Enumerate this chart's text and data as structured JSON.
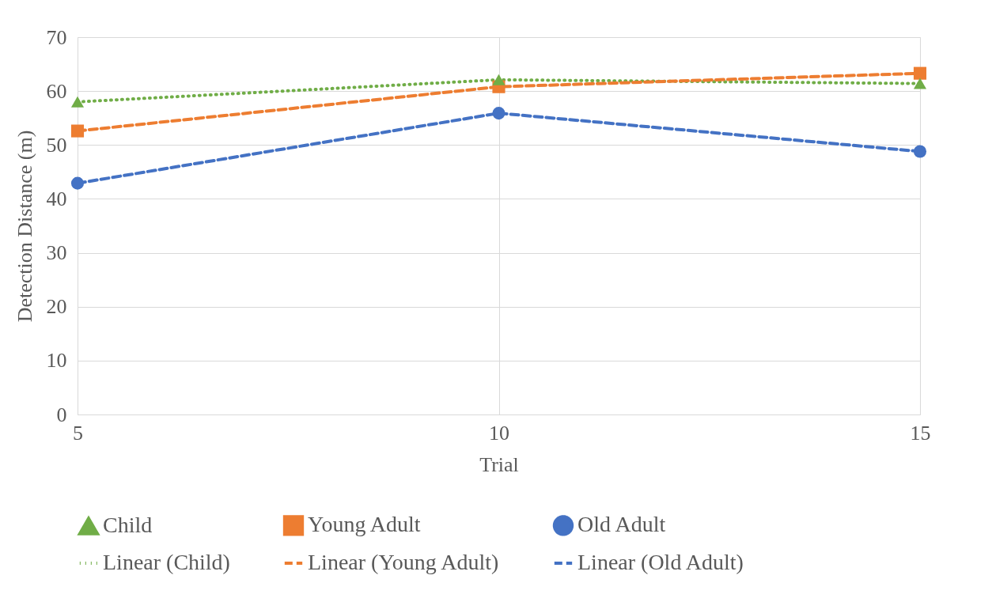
{
  "chart_data": {
    "type": "scatter",
    "xlabel": "Trial",
    "ylabel": "Detection Distance (m)",
    "xlim": [
      5,
      15
    ],
    "xticks": [
      5,
      10,
      15
    ],
    "ylim": [
      0,
      70
    ],
    "yticks": [
      0,
      10,
      20,
      30,
      40,
      50,
      60,
      70
    ],
    "grid": true,
    "legend": "bottom",
    "series": [
      {
        "name": "Child",
        "marker": "triangle",
        "color": "#70ad47",
        "x": [
          5,
          10,
          15
        ],
        "values": [
          58.0,
          62.1,
          61.4
        ]
      },
      {
        "name": "Young Adult",
        "marker": "square",
        "color": "#ed7d31",
        "x": [
          5,
          10,
          15
        ],
        "values": [
          52.6,
          60.8,
          63.3
        ]
      },
      {
        "name": "Old Adult",
        "marker": "circle",
        "color": "#4472c4",
        "x": [
          5,
          10,
          15
        ],
        "values": [
          42.9,
          55.9,
          48.8
        ]
      },
      {
        "name": "Linear (Child)",
        "type": "line",
        "marker": "none",
        "line_style": "dotted",
        "color": "#70ad47",
        "x": [
          5,
          10,
          15
        ],
        "values": [
          58.0,
          62.1,
          61.4
        ]
      },
      {
        "name": "Linear (Young Adult)",
        "type": "line",
        "marker": "none",
        "line_style": "dashed",
        "color": "#ed7d31",
        "x": [
          5,
          10,
          15
        ],
        "values": [
          52.6,
          60.8,
          63.3
        ]
      },
      {
        "name": "Linear (Old Adult)",
        "type": "line",
        "marker": "none",
        "line_style": "dashed",
        "color": "#4472c4",
        "x": [
          5,
          10,
          15
        ],
        "values": [
          42.9,
          55.9,
          48.8
        ]
      }
    ]
  }
}
